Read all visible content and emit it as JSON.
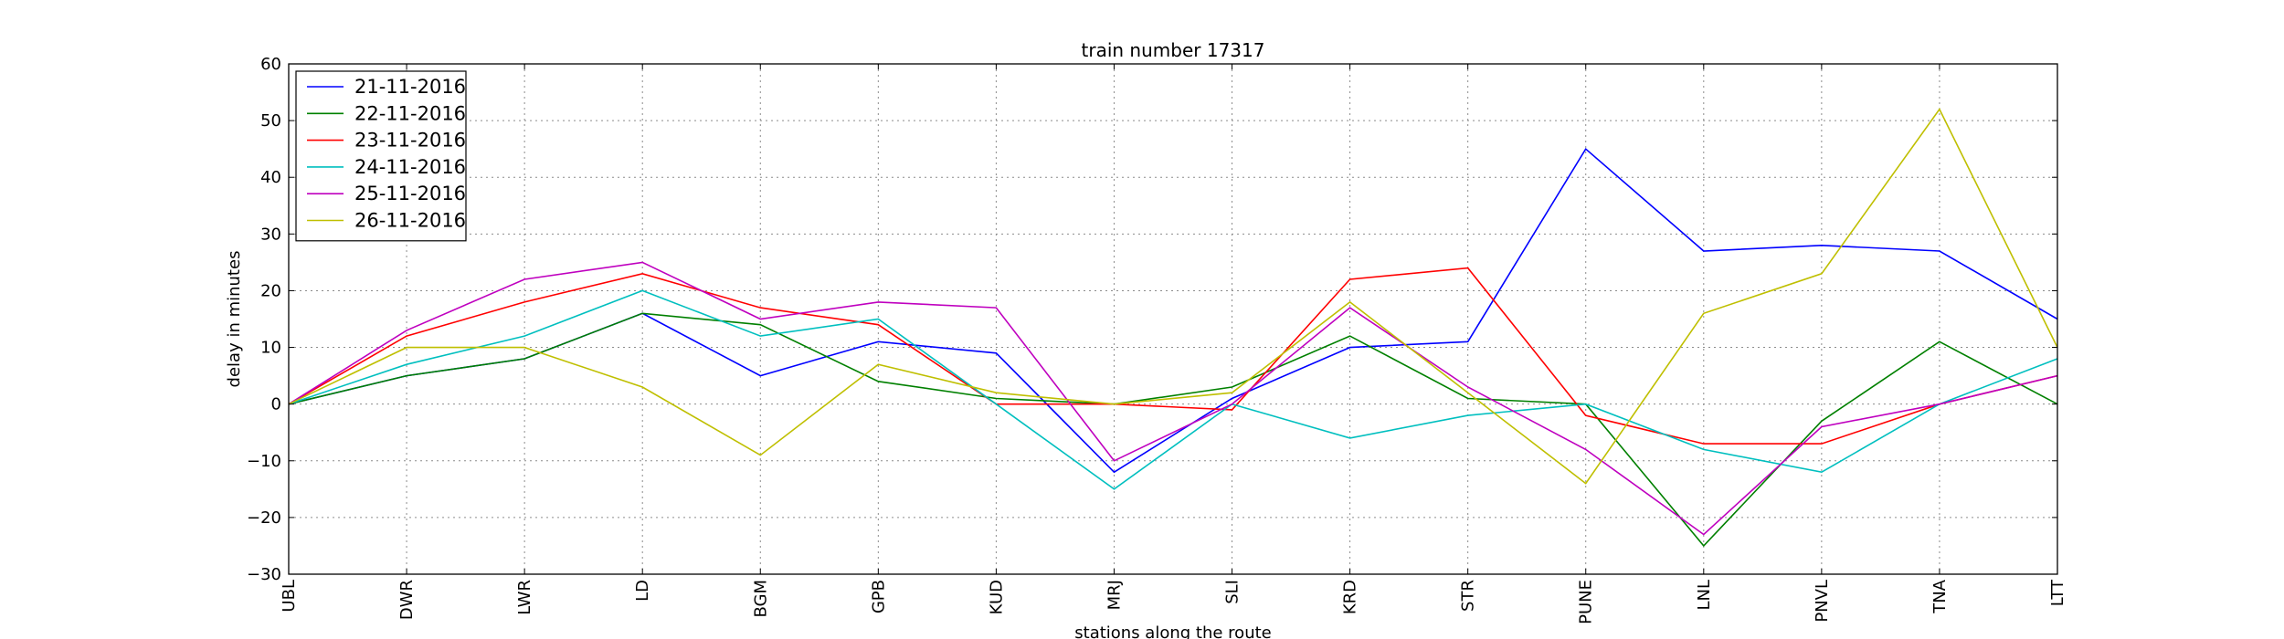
{
  "chart_data": {
    "type": "line",
    "title": "train number 17317",
    "xlabel": "stations along the route",
    "ylabel": "delay in minutes",
    "categories": [
      "UBL",
      "DWR",
      "LWR",
      "LD",
      "BGM",
      "GPB",
      "KUD",
      "MRJ",
      "SLI",
      "KRD",
      "STR",
      "PUNE",
      "LNL",
      "PNVL",
      "TNA",
      "LTT"
    ],
    "ylim": [
      -30,
      60
    ],
    "yticks": [
      -30,
      -20,
      -10,
      0,
      10,
      20,
      30,
      40,
      50,
      60
    ],
    "ytick_labels": [
      "−30",
      "−20",
      "−10",
      "0",
      "10",
      "20",
      "30",
      "40",
      "50",
      "60"
    ],
    "grid": true,
    "legend_position": "top-left",
    "series": [
      {
        "name": "21-11-2016",
        "color": "#0000ff",
        "values": [
          0,
          5,
          8,
          16,
          5,
          11,
          9,
          -12,
          1,
          10,
          11,
          45,
          27,
          28,
          27,
          15
        ]
      },
      {
        "name": "22-11-2016",
        "color": "#008000",
        "values": [
          0,
          5,
          8,
          16,
          14,
          4,
          1,
          0,
          3,
          12,
          1,
          0,
          -25,
          -3,
          11,
          0
        ]
      },
      {
        "name": "23-11-2016",
        "color": "#ff0000",
        "values": [
          0,
          12,
          18,
          23,
          17,
          14,
          0,
          0,
          -1,
          22,
          24,
          -2,
          -7,
          -7,
          0,
          5
        ]
      },
      {
        "name": "24-11-2016",
        "color": "#00bfbf",
        "values": [
          0,
          7,
          12,
          20,
          12,
          15,
          0,
          -15,
          0,
          -6,
          -2,
          0,
          -8,
          -12,
          0,
          8
        ]
      },
      {
        "name": "25-11-2016",
        "color": "#bf00bf",
        "values": [
          0,
          13,
          22,
          25,
          15,
          18,
          17,
          -10,
          0,
          17,
          3,
          -8,
          -23,
          -4,
          0,
          5
        ]
      },
      {
        "name": "26-11-2016",
        "color": "#bfbf00",
        "values": [
          0,
          10,
          10,
          3,
          -9,
          7,
          2,
          0,
          2,
          18,
          2,
          -14,
          16,
          23,
          52,
          10
        ]
      }
    ]
  }
}
